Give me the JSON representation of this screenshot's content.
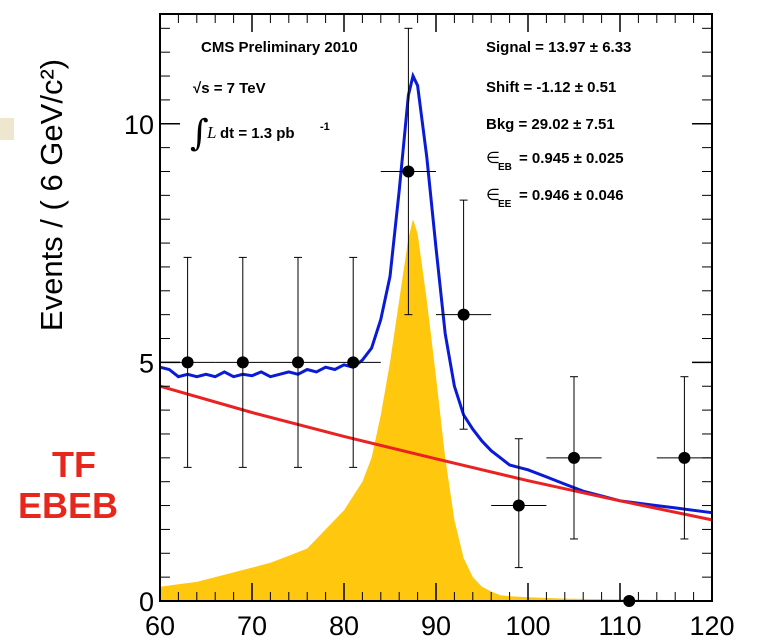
{
  "chart_data": {
    "type": "line",
    "ylabel": "Events / ( 6 GeV/c²)",
    "xlabel": "",
    "xlim": [
      60,
      120
    ],
    "ylim": [
      0,
      12.3
    ],
    "x_ticks": [
      "60",
      "70",
      "80",
      "90",
      "100",
      "110",
      "120"
    ],
    "y_ticks": [
      "0",
      "5",
      "10"
    ],
    "annotations": {
      "experiment": "CMS Preliminary 2010",
      "energy": "√s = 7 TeV",
      "lumi_integral": "∫",
      "lumi_L": "L",
      "lumi_text": "dt = 1.3 pb",
      "lumi_exp": "-1",
      "signal": "Signal = 13.97 ± 6.33",
      "shift": "Shift = -1.12 ± 0.51",
      "bkg": "Bkg = 29.02 ± 7.51",
      "eff_eb_sym": "∈",
      "eff_eb_sub": "EB",
      "eff_eb_val": "= 0.945 ± 0.025",
      "eff_ee_sym": "∈",
      "eff_ee_sub": "EE",
      "eff_ee_val": "= 0.946 ± 0.046"
    },
    "side_label": [
      "TF",
      "EBEB"
    ],
    "data_points": [
      {
        "x": 63,
        "y": 5,
        "xerr": 3,
        "yerr_lo": 2.2,
        "yerr_hi": 2.2
      },
      {
        "x": 69,
        "y": 5,
        "xerr": 3,
        "yerr_lo": 2.2,
        "yerr_hi": 2.2
      },
      {
        "x": 75,
        "y": 5,
        "xerr": 3,
        "yerr_lo": 2.2,
        "yerr_hi": 2.2
      },
      {
        "x": 81,
        "y": 5,
        "xerr": 3,
        "yerr_lo": 2.2,
        "yerr_hi": 2.2
      },
      {
        "x": 87,
        "y": 9,
        "xerr": 3,
        "yerr_lo": 3.0,
        "yerr_hi": 3.0
      },
      {
        "x": 93,
        "y": 6,
        "xerr": 3,
        "yerr_lo": 2.4,
        "yerr_hi": 2.4
      },
      {
        "x": 99,
        "y": 2,
        "xerr": 3,
        "yerr_lo": 1.3,
        "yerr_hi": 1.4
      },
      {
        "x": 105,
        "y": 3,
        "xerr": 3,
        "yerr_lo": 1.7,
        "yerr_hi": 1.7
      },
      {
        "x": 111,
        "y": 0,
        "xerr": 0,
        "yerr_lo": 0,
        "yerr_hi": 0
      },
      {
        "x": 117,
        "y": 3,
        "xerr": 3,
        "yerr_lo": 1.7,
        "yerr_hi": 1.7
      }
    ],
    "series": [
      {
        "color": "#0a1bd6",
        "x": [
          60,
          61,
          62,
          63,
          64,
          65,
          66,
          67,
          68,
          69,
          70,
          71,
          72,
          73,
          74,
          75,
          76,
          77,
          78,
          79,
          80,
          81,
          82,
          83,
          84,
          85,
          86,
          87,
          87.5,
          88,
          89,
          90,
          91,
          92,
          93,
          94,
          95,
          96,
          97,
          98,
          99,
          100,
          102,
          104,
          106,
          108,
          110,
          112,
          114,
          116,
          118,
          120
        ],
        "y": [
          4.9,
          4.85,
          4.7,
          4.75,
          4.7,
          4.75,
          4.7,
          4.8,
          4.7,
          4.75,
          4.72,
          4.8,
          4.7,
          4.75,
          4.8,
          4.75,
          4.85,
          4.8,
          4.9,
          4.85,
          4.95,
          4.9,
          5.05,
          5.3,
          5.9,
          6.8,
          8.6,
          10.6,
          11.0,
          10.8,
          9.3,
          7.4,
          5.6,
          4.5,
          3.9,
          3.6,
          3.35,
          3.15,
          3.0,
          2.85,
          2.8,
          2.75,
          2.6,
          2.45,
          2.3,
          2.2,
          2.1,
          2.05,
          2.0,
          1.95,
          1.9,
          1.85
        ]
      },
      {
        "color": "#ea2222",
        "x": [
          60,
          70,
          80,
          90,
          100,
          110,
          120
        ],
        "y": [
          4.5,
          3.95,
          3.45,
          2.98,
          2.52,
          2.1,
          1.7
        ]
      },
      {
        "color": "#ffc70d",
        "fill": true,
        "x": [
          60,
          62,
          64,
          66,
          68,
          70,
          72,
          74,
          76,
          77,
          78,
          79,
          80,
          81,
          82,
          83,
          84,
          85,
          86,
          87,
          87.5,
          88,
          89,
          90,
          91,
          92,
          93,
          94,
          95,
          96,
          97,
          98,
          100,
          104,
          108,
          112,
          116,
          120
        ],
        "y": [
          0.3,
          0.35,
          0.4,
          0.5,
          0.6,
          0.7,
          0.8,
          0.95,
          1.1,
          1.3,
          1.5,
          1.7,
          1.9,
          2.2,
          2.5,
          3.0,
          3.9,
          5.0,
          6.3,
          7.6,
          8.0,
          7.7,
          6.3,
          4.7,
          3.0,
          1.7,
          0.9,
          0.5,
          0.3,
          0.2,
          0.12,
          0.1,
          0.08,
          0.05,
          0.04,
          0.03,
          0.02,
          0.02
        ]
      }
    ]
  }
}
